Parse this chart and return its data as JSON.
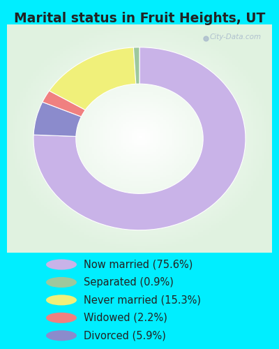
{
  "title": "Marital status in Fruit Heights, UT",
  "slices": [
    75.6,
    5.9,
    2.2,
    15.3,
    0.9
  ],
  "labels": [
    "Now married (75.6%)",
    "Separated (0.9%)",
    "Never married (15.3%)",
    "Widowed (2.2%)",
    "Divorced (5.9%)"
  ],
  "legend_order": [
    0,
    4,
    3,
    2,
    1
  ],
  "legend_labels": [
    "Now married (75.6%)",
    "Separated (0.9%)",
    "Never married (15.3%)",
    "Widowed (2.2%)",
    "Divorced (5.9%)"
  ],
  "colors": [
    "#c9b3e8",
    "#8b8bcc",
    "#f08080",
    "#f0f07a",
    "#9dc89d"
  ],
  "legend_colors": [
    "#c9b3e8",
    "#9dc89d",
    "#f0f07a",
    "#f08080",
    "#8b8bcc"
  ],
  "title_color": "#222222",
  "background_cyan": "#00eeff",
  "background_panel": "#e8f5e8",
  "title_fontsize": 13.5,
  "legend_fontsize": 10.5,
  "watermark": "City-Data.com",
  "figsize": [
    4.0,
    5.0
  ],
  "dpi": 100
}
